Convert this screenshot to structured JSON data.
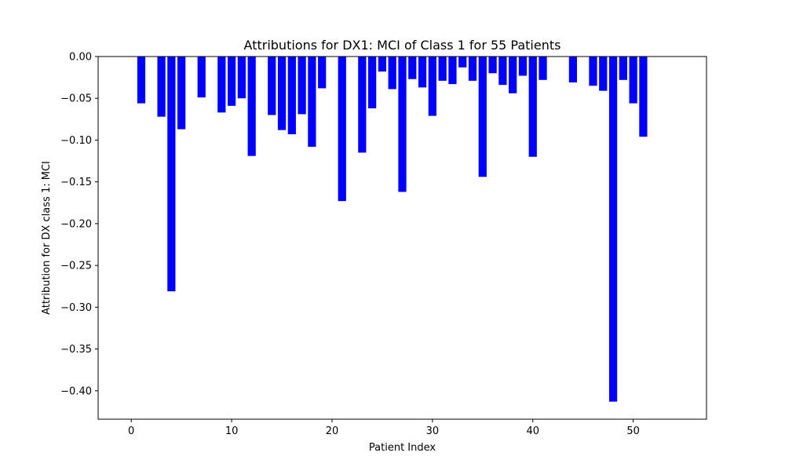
{
  "chart_data": {
    "type": "bar",
    "title": "Attributions for DX1: MCI of Class 1 for 55 Patients",
    "xlabel": "Patient Index",
    "ylabel": "Attribution for DX class 1: MCI",
    "xlim": [
      -3.3,
      57.3
    ],
    "ylim": [
      -0.434,
      0.0
    ],
    "xticks": [
      0,
      10,
      20,
      30,
      40,
      50
    ],
    "yticks": [
      0.0,
      -0.05,
      -0.1,
      -0.15,
      -0.2,
      -0.25,
      -0.3,
      -0.35,
      -0.4
    ],
    "ytick_labels": [
      "0.00",
      "−0.05",
      "−0.10",
      "−0.15",
      "−0.20",
      "−0.25",
      "−0.30",
      "−0.35",
      "−0.40"
    ],
    "bar_color": "#0000ff",
    "grid": false,
    "x": [
      0,
      1,
      2,
      3,
      4,
      5,
      6,
      7,
      8,
      9,
      10,
      11,
      12,
      13,
      14,
      15,
      16,
      17,
      18,
      19,
      20,
      21,
      22,
      23,
      24,
      25,
      26,
      27,
      28,
      29,
      30,
      31,
      32,
      33,
      34,
      35,
      36,
      37,
      38,
      39,
      40,
      41,
      42,
      43,
      44,
      45,
      46,
      47,
      48,
      49,
      50,
      51,
      52,
      53,
      54
    ],
    "values": [
      0.0,
      -0.056,
      0.0,
      -0.072,
      -0.281,
      -0.087,
      0.0,
      -0.049,
      0.0,
      -0.067,
      -0.059,
      -0.05,
      -0.119,
      0.0,
      -0.07,
      -0.088,
      -0.093,
      -0.069,
      -0.108,
      -0.038,
      0.0,
      -0.173,
      0.0,
      -0.115,
      -0.062,
      -0.018,
      -0.039,
      -0.162,
      -0.027,
      -0.037,
      -0.071,
      -0.029,
      -0.033,
      -0.013,
      -0.029,
      -0.144,
      -0.02,
      -0.034,
      -0.044,
      -0.023,
      -0.12,
      -0.028,
      0.0,
      0.0,
      -0.031,
      0.0,
      -0.035,
      -0.041,
      -0.413,
      -0.028,
      -0.056,
      -0.096,
      0.0,
      0.0,
      0.0
    ]
  }
}
